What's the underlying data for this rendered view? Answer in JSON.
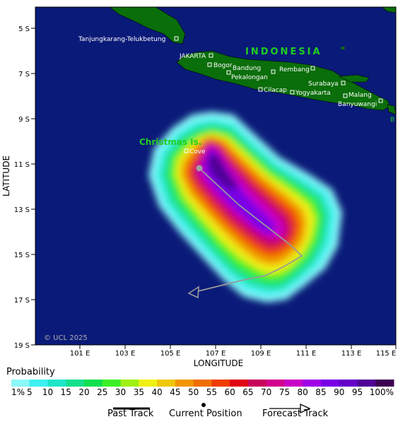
{
  "map": {
    "country_label": "INDONESIA",
    "island_label": "Christmas Is.",
    "copyright": "© UCL 2025",
    "lat_axis_title": "LATITUDE",
    "lon_axis_title": "LONGITUDE",
    "lat_ticks": [
      "5 S",
      "7 S",
      "9 S",
      "11 S",
      "13 S",
      "15 S",
      "17 S",
      "19 S"
    ],
    "lon_ticks": [
      "101 E",
      "103 E",
      "105 E",
      "107 E",
      "109 E",
      "111 E",
      "113 E",
      "115 E"
    ],
    "places": [
      {
        "name": "Tanjungkarang-Telukbetung"
      },
      {
        "name": "JAKARTA"
      },
      {
        "name": "Bogor"
      },
      {
        "name": "Bandung"
      },
      {
        "name": "Pekalongan"
      },
      {
        "name": "Rembang"
      },
      {
        "name": "Surabaya"
      },
      {
        "name": "Cilacap"
      },
      {
        "name": "Yogyakarta"
      },
      {
        "name": "Malang"
      },
      {
        "name": "Banyuwangi"
      },
      {
        "name": "B"
      },
      {
        "name": "Cove"
      }
    ],
    "colors": {
      "ocean": "#0a1a78",
      "land": "#0a6e0a",
      "indonesia_label": "#1fcf1f",
      "track": "#9a9a9a"
    }
  },
  "legend": {
    "title": "Probability",
    "labels": [
      "1%",
      "5",
      "10",
      "15",
      "20",
      "25",
      "30",
      "35",
      "40",
      "45",
      "50",
      "55",
      "60",
      "65",
      "70",
      "75",
      "80",
      "85",
      "90",
      "95",
      "100%"
    ],
    "colors": [
      "#8cf8f8",
      "#3ff0f0",
      "#1ee6c8",
      "#14e08c",
      "#10e050",
      "#3cf028",
      "#a0f014",
      "#f0f014",
      "#f0c80a",
      "#f09600",
      "#f06e00",
      "#f03c00",
      "#e00014",
      "#c8005a",
      "#d2008c",
      "#c800c8",
      "#a000e6",
      "#7800e6",
      "#6400c8",
      "#500096",
      "#3c0050"
    ],
    "past_track_label": "Past Track",
    "current_position_label": "Current Position",
    "forecast_track_label": "Forecast Track"
  }
}
